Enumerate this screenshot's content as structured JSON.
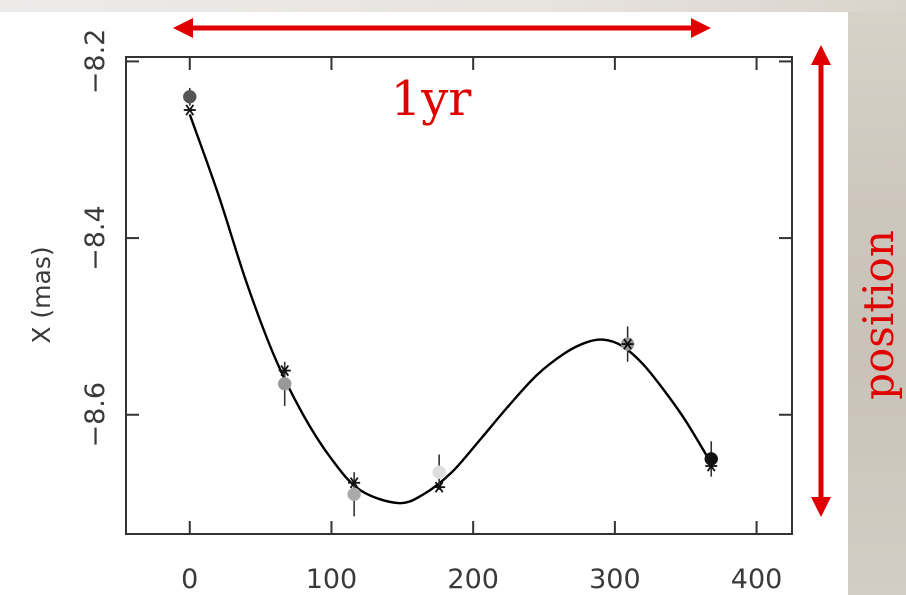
{
  "chart_data": {
    "type": "scatter",
    "ylabel": "X (mas)",
    "xlabel": "",
    "x_ticks": [
      0,
      100,
      200,
      300,
      400
    ],
    "y_ticks": [
      -8.2,
      -8.4,
      -8.6
    ],
    "xlim": [
      -45,
      425
    ],
    "ylim": [
      -8.735,
      -8.195
    ],
    "fit_curve_color": "#000000",
    "observed": [
      {
        "x": 0,
        "y": -8.24,
        "err": 0.01,
        "color": "#555555"
      },
      {
        "x": 67,
        "y": -8.565,
        "err": 0.025,
        "color": "#999999"
      },
      {
        "x": 116,
        "y": -8.69,
        "err": 0.025,
        "color": "#aaaaaa"
      },
      {
        "x": 176,
        "y": -8.665,
        "err": 0.02,
        "color": "#dddddd"
      },
      {
        "x": 309,
        "y": -8.52,
        "err": 0.02,
        "color": "#999999"
      },
      {
        "x": 368,
        "y": -8.65,
        "err": 0.02,
        "color": "#111111"
      }
    ],
    "model": [
      {
        "x": 0,
        "y": -8.255
      },
      {
        "x": 67,
        "y": -8.55
      },
      {
        "x": 116,
        "y": -8.677
      },
      {
        "x": 176,
        "y": -8.682
      },
      {
        "x": 309,
        "y": -8.52
      },
      {
        "x": 368,
        "y": -8.658
      }
    ],
    "fit_curve": [
      [
        0,
        -8.26
      ],
      [
        20,
        -8.35
      ],
      [
        40,
        -8.45
      ],
      [
        60,
        -8.535
      ],
      [
        80,
        -8.6
      ],
      [
        100,
        -8.65
      ],
      [
        120,
        -8.685
      ],
      [
        147,
        -8.7
      ],
      [
        165,
        -8.69
      ],
      [
        185,
        -8.665
      ],
      [
        205,
        -8.628
      ],
      [
        225,
        -8.59
      ],
      [
        245,
        -8.555
      ],
      [
        265,
        -8.53
      ],
      [
        280,
        -8.518
      ],
      [
        292,
        -8.515
      ],
      [
        305,
        -8.522
      ],
      [
        320,
        -8.543
      ],
      [
        335,
        -8.573
      ],
      [
        350,
        -8.607
      ],
      [
        368,
        -8.655
      ]
    ]
  },
  "annotations": {
    "period_label": "1yr",
    "axis_label": "position",
    "arrow_color": "#e00000"
  }
}
